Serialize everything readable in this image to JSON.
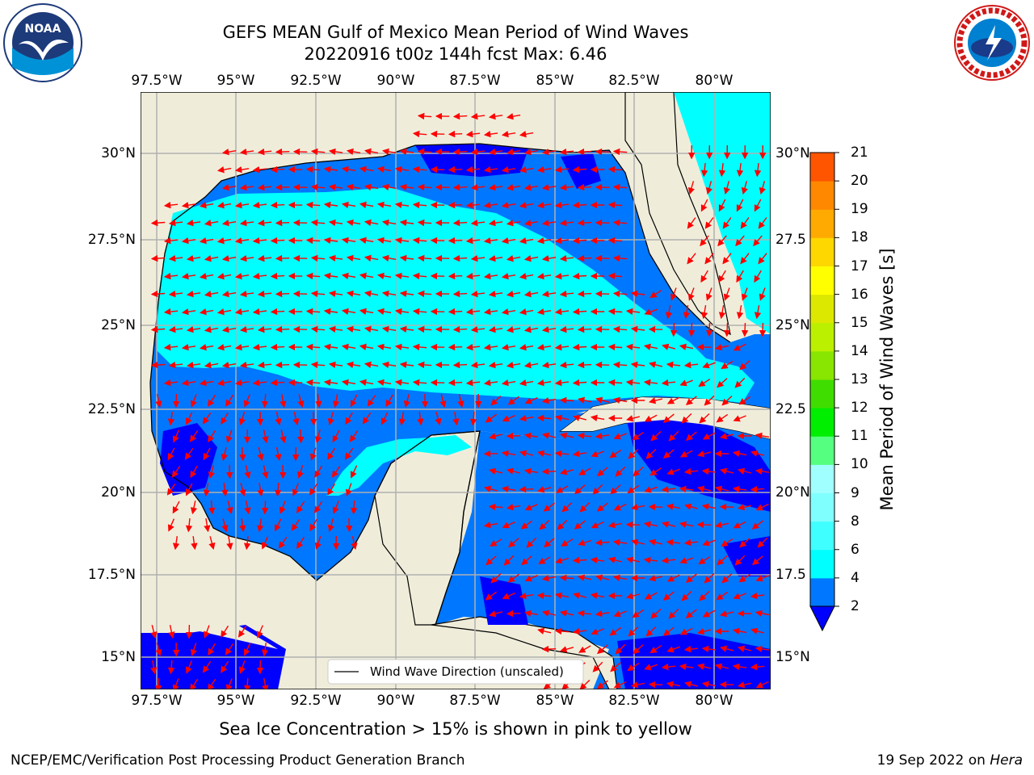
{
  "title_line1": "GEFS MEAN Gulf of Mexico Mean Period of Wind Waves",
  "title_line2": "20220916 t00z 144h fcst   Max: 6.46",
  "logos": {
    "left": "NOAA",
    "right": "NATIONAL WEATHER SERVICE"
  },
  "lon_labels": [
    "97.5°W",
    "95°W",
    "92.5°W",
    "90°W",
    "87.5°W",
    "85°W",
    "82.5°W",
    "80°W"
  ],
  "lat_labels_left": [
    "30°N",
    "27.5°N",
    "25°N",
    "22.5°N",
    "20°N",
    "17.5°N",
    "15°N"
  ],
  "lat_labels_right": [
    "30°N",
    "27.5",
    "25°N",
    "22.5",
    "20°N",
    "17.5",
    "15°N"
  ],
  "legend": {
    "label": "Wind Wave Direction (unscaled)"
  },
  "colorbar": {
    "label": "Mean Period of Wind Waves [s]",
    "ticks": [
      "2",
      "4",
      "6",
      "8",
      "9",
      "10",
      "11",
      "12",
      "13",
      "14",
      "15",
      "16",
      "17",
      "18",
      "19",
      "20",
      "21"
    ],
    "colors": [
      "#0077ff",
      "#00ffff",
      "#40ffff",
      "#80ffff",
      "#a0ffff",
      "#55ff80",
      "#00ee00",
      "#40dd00",
      "#88e600",
      "#bbf000",
      "#dde800",
      "#ffff00",
      "#ffd700",
      "#ffaa00",
      "#ff8800",
      "#ff5500",
      "#ff2200",
      "#ff0000"
    ],
    "under_color": "#0000ff"
  },
  "map_colors": {
    "land": "#efedda",
    "ocean_2": "#0077ff",
    "ocean_4": "#00ffff",
    "below": "#0000ff",
    "arrow": "#ff0000",
    "grid": "#b0b0b0"
  },
  "bottom_note": "Sea Ice Concentration > 15% is shown in pink to yellow",
  "footer_left": "NCEP/EMC/Verification Post Processing Product Generation Branch",
  "footer_right_prefix": "19 Sep 2022 on",
  "footer_right_host": "Hera"
}
